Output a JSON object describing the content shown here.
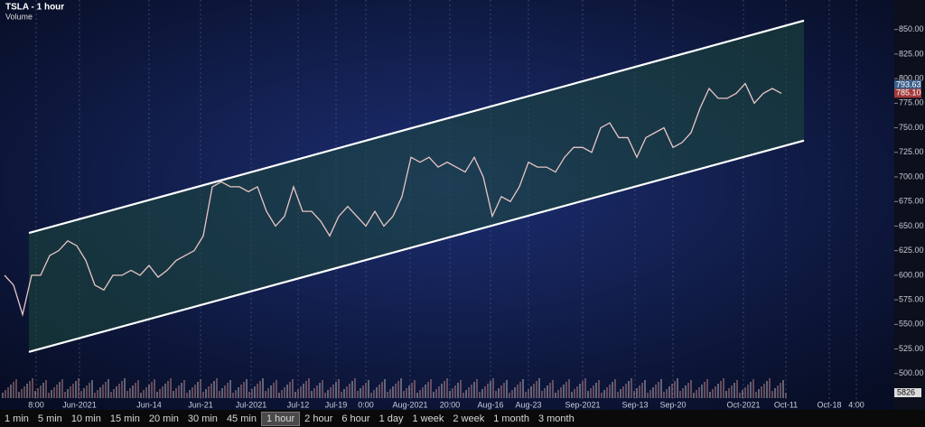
{
  "chart_data": {
    "type": "line",
    "title": "TSLA - 1 hour",
    "indicator_label": "Volume",
    "values": [
      600,
      590,
      560,
      600,
      600,
      620,
      625,
      635,
      630,
      615,
      590,
      585,
      600,
      600,
      605,
      600,
      610,
      598,
      605,
      615,
      620,
      625,
      640,
      690,
      695,
      690,
      690,
      685,
      690,
      665,
      650,
      660,
      690,
      665,
      665,
      655,
      640,
      660,
      670,
      660,
      650,
      665,
      650,
      660,
      680,
      720,
      715,
      720,
      710,
      715,
      710,
      705,
      720,
      700,
      660,
      680,
      675,
      690,
      715,
      710,
      710,
      705,
      720,
      730,
      730,
      725,
      750,
      755,
      740,
      740,
      720,
      740,
      745,
      750,
      730,
      735,
      745,
      770,
      790,
      780,
      780,
      785,
      795,
      775,
      785,
      790,
      785
    ],
    "color": "#e9c6c6",
    "x_labels": [
      "8:00",
      "Jun-2021",
      "Jun-14",
      "Jun-21",
      "Jul-2021",
      "Jul-12",
      "Jul-19",
      "0:00",
      "Aug-2021",
      "20:00",
      "Aug-16",
      "Aug-23",
      "Sep-2021",
      "Sep-13",
      "Sep-20",
      "Oct-2021",
      "Oct-11",
      "Oct-18",
      "4:00"
    ],
    "ylim": [
      475,
      880
    ],
    "yticks": [
      {
        "value": 500,
        "label": "500.00"
      },
      {
        "value": 525,
        "label": "525.00"
      },
      {
        "value": 550,
        "label": "550.00"
      },
      {
        "value": 575,
        "label": "575.00"
      },
      {
        "value": 600,
        "label": "600.00"
      },
      {
        "value": 625,
        "label": "625.00"
      },
      {
        "value": 650,
        "label": "650.00"
      },
      {
        "value": 675,
        "label": "675.00"
      },
      {
        "value": 700,
        "label": "700.00"
      },
      {
        "value": 725,
        "label": "725.00"
      },
      {
        "value": 750,
        "label": "750.00"
      },
      {
        "value": 775,
        "label": "775.00"
      },
      {
        "value": 800,
        "label": "800.00"
      },
      {
        "value": 825,
        "label": "825.00"
      },
      {
        "value": 850,
        "label": "850.00"
      }
    ],
    "grid": true,
    "channel": {
      "upper": [
        643,
        859
      ],
      "lower": [
        522,
        737
      ],
      "color": "#ffffff",
      "fill": "#1d4a3c"
    },
    "price_labels": [
      {
        "value": 793.63,
        "label": "793.63",
        "color": "#3d5f8a"
      },
      {
        "value": 785.1,
        "label": "785.10",
        "color": "#a33a3a"
      }
    ],
    "volume_label": "5826"
  },
  "toolbar": {
    "intervals": [
      "1 min",
      "5 min",
      "10 min",
      "15 min",
      "20 min",
      "30 min",
      "45 min",
      "1 hour",
      "2 hour",
      "6 hour",
      "1 day",
      "1 week",
      "2 week",
      "1 month",
      "3 month"
    ],
    "selected": 7
  }
}
